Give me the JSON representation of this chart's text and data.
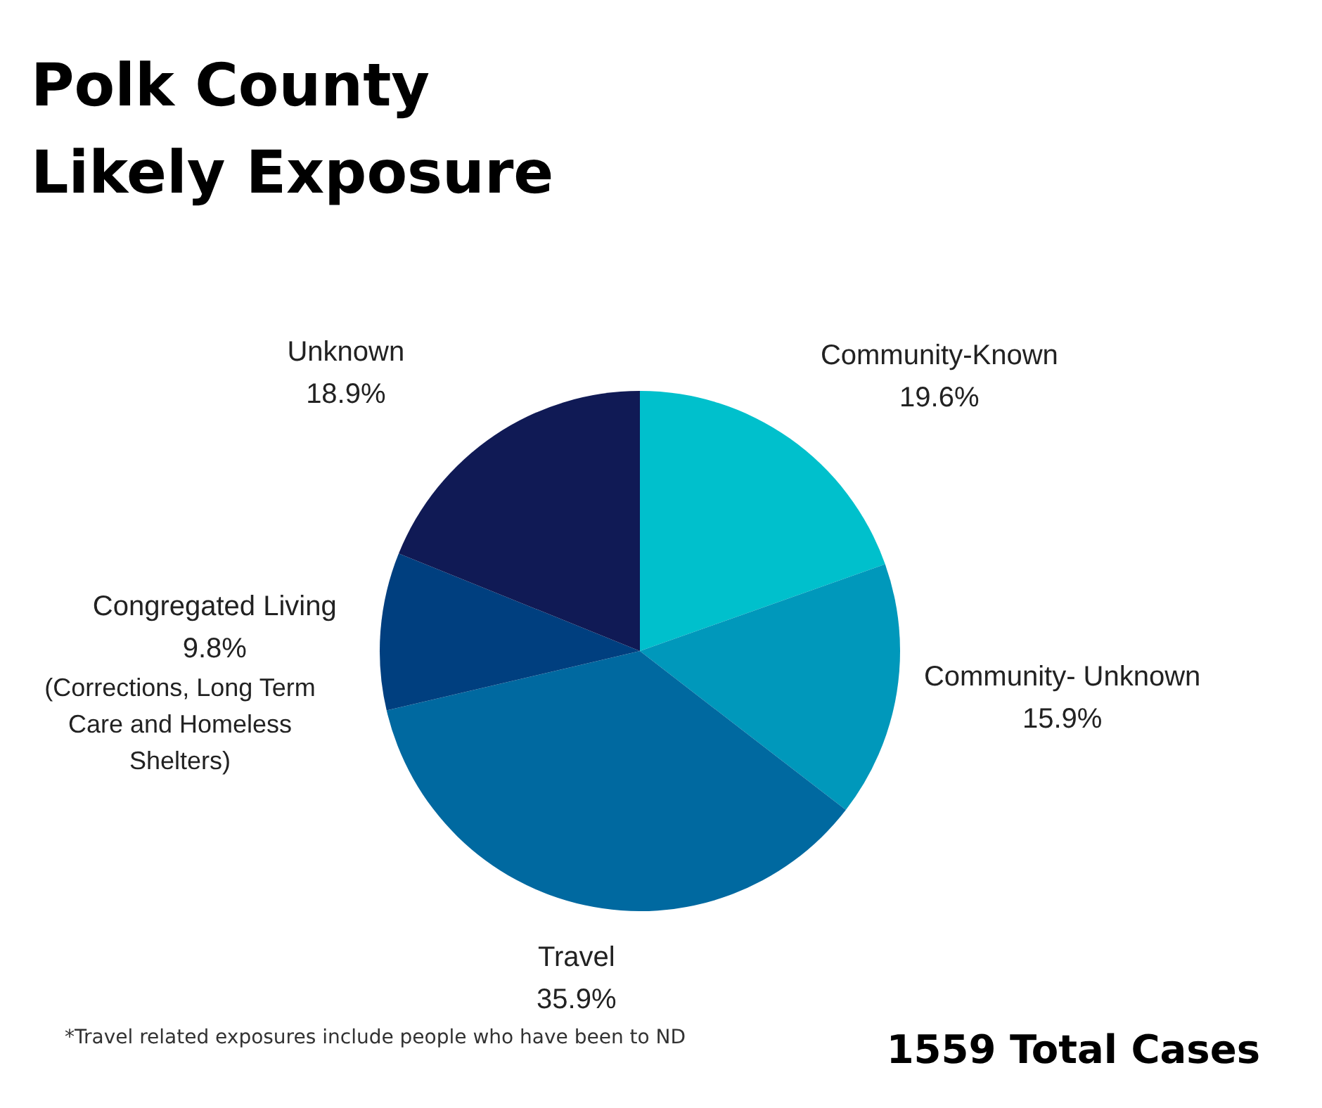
{
  "chart_data": {
    "type": "pie",
    "title": "Polk County Likely Exposure",
    "categories": [
      "Community-Known",
      "Community- Unknown",
      "Travel",
      "Congregated Living",
      "Unknown"
    ],
    "values": [
      19.6,
      15.9,
      35.9,
      9.8,
      18.9
    ],
    "value_labels": [
      "19.6%",
      "15.9%",
      "35.9%",
      "9.8%",
      "18.9%"
    ],
    "colors": [
      "#00c0cc",
      "#0098bb",
      "#0069a0",
      "#003f7f",
      "#101a55"
    ],
    "annotations": [
      "(Corrections, Long Term Care and Homeless Shelters)",
      "*Travel related exposures include people who have been to ND",
      "1559 Total Cases"
    ]
  }
}
